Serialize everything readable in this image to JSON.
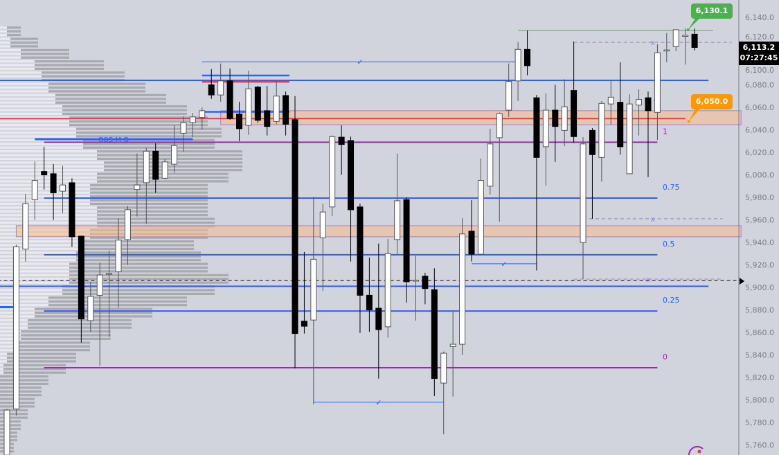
{
  "chart_data": {
    "type": "candlestick",
    "ylim": [
      5755,
      6152
    ],
    "y_ticks": [
      "6,140.0",
      "6,120.0",
      "6,100.0",
      "6,080.0",
      "6,060.0",
      "6,040.0",
      "6,020.0",
      "6,000.0",
      "5,980.0",
      "5,960.0",
      "5,940.0",
      "5,920.0",
      "5,900.0",
      "5,880.0",
      "5,860.0",
      "5,840.0",
      "5,820.0",
      "5,800.0",
      "5,780.0",
      "5,760.0"
    ],
    "y_tick_values": [
      6140,
      6120,
      6100,
      6080,
      6060,
      6040,
      6020,
      6000,
      5980,
      5960,
      5940,
      5920,
      5900,
      5880,
      5860,
      5840,
      5820,
      5800,
      5780,
      5760
    ],
    "candles_ohlc": [
      [
        5751,
        5792,
        5745,
        5791
      ],
      [
        5792,
        5938,
        5786,
        5936
      ],
      [
        5934,
        5983,
        5923,
        5974.5
      ],
      [
        5978,
        6012,
        5960,
        5995
      ],
      [
        6003,
        6025,
        5987,
        6000
      ],
      [
        6001,
        6009.5,
        5960,
        5984
      ],
      [
        5985.5,
        6008,
        5966,
        5991
      ],
      [
        5993,
        5997,
        5936,
        5945
      ],
      [
        5945.5,
        5946,
        5851,
        5872
      ],
      [
        5870.5,
        5905,
        5860.5,
        5892
      ],
      [
        5893,
        5922,
        5830.5,
        5911
      ],
      [
        5912,
        5933,
        5856,
        5912.5
      ],
      [
        5914,
        5961.5,
        5882,
        5942
      ],
      [
        5942.5,
        5972.5,
        5920,
        5969
      ],
      [
        5987,
        6019,
        5963,
        5991
      ],
      [
        5993,
        6024,
        5956.5,
        6021
      ],
      [
        6021,
        6028,
        5984,
        5996
      ],
      [
        5997,
        6014,
        5996,
        6011.5
      ],
      [
        6009.5,
        6044,
        6002,
        6026
      ],
      [
        6037,
        6052,
        6020.5,
        6046.5
      ],
      [
        6046.5,
        6055,
        6033.5,
        6051.5
      ],
      [
        6051,
        6060,
        6040,
        6057
      ],
      [
        6080,
        6094,
        6067.5,
        6071
      ],
      [
        6071,
        6099,
        6065,
        6083.5
      ],
      [
        6083.5,
        6094.5,
        6049,
        6050
      ],
      [
        6054,
        6065,
        6030,
        6041
      ],
      [
        6044,
        6092.5,
        6035.5,
        6076.5
      ],
      [
        6078,
        6079,
        6046.5,
        6048.5
      ],
      [
        6057,
        6079,
        6035,
        6043
      ],
      [
        6047.5,
        6083.5,
        6045,
        6070
      ],
      [
        6070.5,
        6074,
        6035,
        6045
      ],
      [
        6049,
        6070,
        5828,
        5859
      ],
      [
        5870,
        5931.5,
        5859,
        5865.5
      ],
      [
        5871,
        5980.5,
        5796,
        5925
      ],
      [
        5944,
        5974.5,
        5897,
        5967
      ],
      [
        5971.5,
        6035,
        5963.5,
        6034
      ],
      [
        6033.5,
        6044,
        6000,
        6027
      ],
      [
        6030.5,
        6034,
        5923,
        5969
      ],
      [
        5971.5,
        5974.5,
        5859.5,
        5893
      ],
      [
        5893,
        5926.5,
        5860.5,
        5880
      ],
      [
        5881.5,
        5939,
        5819,
        5862.5
      ],
      [
        5865,
        5943,
        5855.5,
        5930
      ],
      [
        5942.5,
        6019,
        5929.5,
        5977
      ],
      [
        5978,
        5980,
        5886.5,
        5905
      ],
      [
        5906,
        5928,
        5870.5,
        5906.5
      ],
      [
        5910,
        5913,
        5885,
        5899
      ],
      [
        5898,
        5917,
        5803.5,
        5819
      ],
      [
        5815,
        5843,
        5769.5,
        5841.5
      ],
      [
        5847.5,
        5878.5,
        5803,
        5849.5
      ],
      [
        5849.5,
        5961.5,
        5840,
        5947.5
      ],
      [
        5950,
        5977.5,
        5923,
        5929.5
      ],
      [
        5929.5,
        6014.5,
        5929,
        5995
      ],
      [
        5990,
        6041,
        5982.5,
        6027.5
      ],
      [
        6033,
        6055.5,
        5958.5,
        6054.5
      ],
      [
        6057.5,
        6099,
        6051.5,
        6083
      ],
      [
        6083.5,
        6118,
        6065.5,
        6111.5
      ],
      [
        6111.5,
        6128.3,
        6088.5,
        6097
      ],
      [
        6068.5,
        6071,
        5915,
        6015.5
      ],
      [
        6025,
        6072.5,
        5990.5,
        6057.5
      ],
      [
        6057.5,
        6080,
        6011.5,
        6043
      ],
      [
        6039.5,
        6085,
        6025.5,
        6060.5
      ],
      [
        6075,
        6118.5,
        6028.5,
        6034
      ],
      [
        5940,
        6033.5,
        5907.5,
        6027.5
      ],
      [
        6039.5,
        6041.5,
        5961,
        6018
      ],
      [
        6015.5,
        6065.5,
        5994,
        6063.5
      ],
      [
        6063,
        6083.5,
        6044.5,
        6069
      ],
      [
        6064.5,
        6100,
        6018,
        6025
      ],
      [
        6001,
        6071.5,
        6000.5,
        6063
      ],
      [
        6062,
        6076,
        6035,
        6067
      ],
      [
        6068.5,
        6074,
        5998,
        6057
      ],
      [
        6055.5,
        6116,
        6031,
        6108.5
      ],
      [
        6110.5,
        6126,
        6100,
        6111
      ],
      [
        6114,
        6129,
        6110,
        6129
      ],
      [
        6123.5,
        6130.1,
        6098,
        6124
      ],
      [
        6125,
        6130,
        6110.5,
        6113.2
      ]
    ],
    "horizontal_lines": [
      {
        "price": 6128.3,
        "from_bar": 55,
        "to_bar": 76,
        "color": "#4caf50",
        "style": "solid",
        "weight": 1
      },
      {
        "price": 6117.8,
        "from_bar": 61,
        "to_bar": 78,
        "color": "#9c7fd6",
        "style": "dashed",
        "weight": 1,
        "mark": "x"
      },
      {
        "price": 6100.5,
        "from_bar": 21,
        "to_bar": 55,
        "color": "#2962ff",
        "style": "solid",
        "weight": 1,
        "mark": "✓"
      },
      {
        "price": 6088.3,
        "from_bar": 21,
        "to_bar": 30.4,
        "color": "#2962ff",
        "style": "solid",
        "weight": 2.5
      },
      {
        "price": 6084,
        "from_bar": -1,
        "to_bar": 75.5,
        "color": "#2962ff",
        "style": "solid",
        "weight": 2
      },
      {
        "price": 6082.8,
        "from_bar": 21,
        "to_bar": 30.4,
        "color": "#f23645",
        "style": "solid",
        "weight": 2.5
      },
      {
        "price": 6056,
        "from_bar": 21,
        "to_bar": 30.4,
        "color": "#2962ff",
        "style": "solid",
        "weight": 2.5
      },
      {
        "price": 6050,
        "from_bar": -1,
        "to_bar": 73,
        "color": "#f23645",
        "style": "solid",
        "weight": 2
      },
      {
        "price": 6031.7,
        "from_bar": 3,
        "to_bar": 20,
        "color": "#2962ff",
        "style": "solid",
        "weight": 3,
        "text": "BOS M-D"
      },
      {
        "price": 6029,
        "from_bar": 4,
        "to_bar": 70,
        "color": "#9c27b0",
        "style": "solid",
        "weight": 2,
        "fib": "1"
      },
      {
        "price": 5979.4,
        "from_bar": 4,
        "to_bar": 70,
        "color": "#2962ff",
        "style": "solid",
        "weight": 2,
        "fib": "0.75"
      },
      {
        "price": 5961,
        "from_bar": 62,
        "to_bar": 77,
        "color": "#9c7fd6",
        "style": "dashed",
        "weight": 1,
        "mark": "x"
      },
      {
        "price": 5929,
        "from_bar": 4,
        "to_bar": 70,
        "color": "#2962ff",
        "style": "solid",
        "weight": 2,
        "fib": "0.5"
      },
      {
        "price": 5921,
        "from_bar": 50,
        "to_bar": 57,
        "color": "#2962ff",
        "style": "solid",
        "weight": 1,
        "mark": "✓"
      },
      {
        "price": 5907.4,
        "from_bar": 61,
        "to_bar": 77,
        "color": "#9c7fd6",
        "style": "dashed",
        "weight": 1,
        "mark": "x"
      },
      {
        "price": 5906.2,
        "from_bar": -1,
        "to_bar": 79,
        "color": "#000000",
        "style": "dashed",
        "weight": 1
      },
      {
        "price": 5901,
        "from_bar": -1,
        "to_bar": 75.5,
        "color": "#2962ff",
        "style": "solid",
        "weight": 2
      },
      {
        "price": 5882.5,
        "from_bar": -1,
        "to_bar": 1,
        "color": "#2962ff",
        "style": "solid",
        "weight": 3
      },
      {
        "price": 5879,
        "from_bar": 4,
        "to_bar": 70,
        "color": "#2962ff",
        "style": "solid",
        "weight": 2,
        "fib": "0.25"
      },
      {
        "price": 5828.6,
        "from_bar": 4,
        "to_bar": 70,
        "color": "#9c27b0",
        "style": "solid",
        "weight": 2,
        "fib": "0"
      },
      {
        "price": 5798,
        "from_bar": 33,
        "to_bar": 47,
        "color": "#2962ff",
        "style": "solid",
        "weight": 1,
        "mark": "✓"
      }
    ],
    "zones": [
      {
        "top": 6057,
        "bottom": 6044.6,
        "from_bar": 23,
        "to_bar": 79,
        "color": "#f7b98a"
      },
      {
        "top": 5954.8,
        "bottom": 5945,
        "from_bar": 1,
        "to_bar": 79,
        "color": "#f7b98a"
      }
    ],
    "volume_profile": [
      [
        6130,
        10,
        20
      ],
      [
        6120,
        15,
        40
      ],
      [
        6110,
        30,
        70
      ],
      [
        6100,
        50,
        100
      ],
      [
        6090,
        60,
        120
      ],
      [
        6080,
        70,
        140
      ],
      [
        6070,
        80,
        160
      ],
      [
        6060,
        90,
        180
      ],
      [
        6050,
        100,
        200
      ],
      [
        6040,
        110,
        210
      ],
      [
        6030,
        120,
        190
      ],
      [
        6020,
        140,
        210
      ],
      [
        6010,
        150,
        200
      ],
      [
        6000,
        140,
        190
      ],
      [
        5990,
        130,
        170
      ],
      [
        5980,
        130,
        170
      ],
      [
        5970,
        140,
        160
      ],
      [
        5960,
        140,
        170
      ],
      [
        5950,
        130,
        170
      ],
      [
        5940,
        120,
        160
      ],
      [
        5930,
        110,
        180
      ],
      [
        5920,
        100,
        200
      ],
      [
        5910,
        100,
        230
      ],
      [
        5900,
        90,
        220
      ],
      [
        5890,
        70,
        200
      ],
      [
        5880,
        50,
        170
      ],
      [
        5870,
        40,
        150
      ],
      [
        5860,
        30,
        130
      ],
      [
        5850,
        20,
        110
      ],
      [
        5840,
        10,
        100
      ],
      [
        5830,
        5,
        90
      ],
      [
        5820,
        0,
        70
      ],
      [
        5810,
        0,
        60
      ],
      [
        5800,
        0,
        50
      ],
      [
        5790,
        0,
        40
      ],
      [
        5780,
        0,
        30
      ],
      [
        5770,
        0,
        25
      ],
      [
        5760,
        0,
        20
      ]
    ],
    "callouts": {
      "high": {
        "text": "6,130.1",
        "price": 6130.1,
        "bar": 73,
        "color": "#4caf50"
      },
      "level": {
        "text": "6,050.0",
        "price": 6050,
        "bar": 73,
        "color": "#ff9800"
      }
    },
    "last_price": {
      "price": "6,113.2",
      "countdown": "07:27:45",
      "value": 6113.2
    },
    "colors": {
      "background": "#d1d4dc",
      "up": "#ffffff",
      "down": "#000000",
      "axis_text": "#7a7d85"
    }
  }
}
